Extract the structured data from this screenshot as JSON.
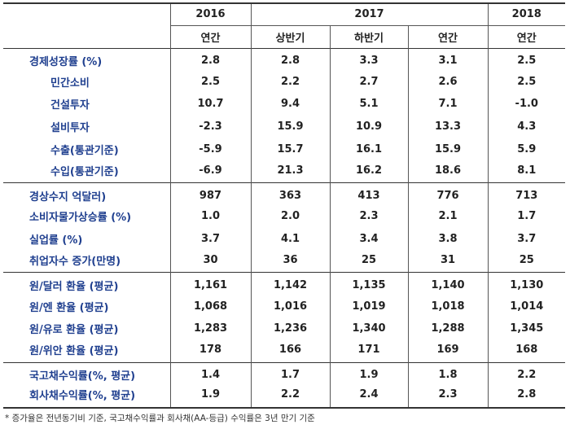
{
  "header": {
    "years": [
      "2016",
      "2017",
      "2018"
    ],
    "periods": [
      "연간",
      "상반기",
      "하반기",
      "연간",
      "연간"
    ]
  },
  "groups": [
    {
      "rows": [
        {
          "label": "경제성장률 (%)",
          "sub": false,
          "values": [
            "2.8",
            "2.8",
            "3.3",
            "3.1",
            "2.5"
          ]
        },
        {
          "label": "민간소비",
          "sub": true,
          "values": [
            "2.5",
            "2.2",
            "2.7",
            "2.6",
            "2.5"
          ]
        },
        {
          "label": "건설투자",
          "sub": true,
          "values": [
            "10.7",
            "9.4",
            "5.1",
            "7.1",
            "-1.0"
          ]
        },
        {
          "label": "설비투자",
          "sub": true,
          "values": [
            "-2.3",
            "15.9",
            "10.9",
            "13.3",
            "4.3"
          ]
        },
        {
          "label": "수출(통관기준)",
          "sub": true,
          "values": [
            "-5.9",
            "15.7",
            "16.1",
            "15.9",
            "5.9"
          ]
        },
        {
          "label": "수입(통관기준)",
          "sub": true,
          "values": [
            "-6.9",
            "21.3",
            "16.2",
            "18.6",
            "8.1"
          ]
        }
      ]
    },
    {
      "rows": [
        {
          "label": "경상수지 억달러)",
          "sub": false,
          "values": [
            "987",
            "363",
            "413",
            "776",
            "713"
          ]
        },
        {
          "label": "소비자물가상승률 (%)",
          "sub": false,
          "values": [
            "1.0",
            "2.0",
            "2.3",
            "2.1",
            "1.7"
          ]
        },
        {
          "label": "실업률 (%)",
          "sub": false,
          "values": [
            "3.7",
            "4.1",
            "3.4",
            "3.8",
            "3.7"
          ]
        },
        {
          "label": "취업자수 증가(만명)",
          "sub": false,
          "values": [
            "30",
            "36",
            "25",
            "31",
            "25"
          ]
        }
      ]
    },
    {
      "rows": [
        {
          "label": "원/달러 환율 (평균)",
          "sub": false,
          "values": [
            "1,161",
            "1,142",
            "1,135",
            "1,140",
            "1,130"
          ]
        },
        {
          "label": "원/엔 환율 (평균)",
          "sub": false,
          "values": [
            "1,068",
            "1,016",
            "1,019",
            "1,018",
            "1,014"
          ]
        },
        {
          "label": "원/유로 환율 (평균)",
          "sub": false,
          "values": [
            "1,283",
            "1,236",
            "1,340",
            "1,288",
            "1,345"
          ]
        },
        {
          "label": "원/위안 환율 (평균)",
          "sub": false,
          "values": [
            "178",
            "166",
            "171",
            "169",
            "168"
          ]
        }
      ]
    },
    {
      "rows": [
        {
          "label": "국고채수익률(%, 평균)",
          "sub": false,
          "values": [
            "1.4",
            "1.7",
            "1.9",
            "1.8",
            "2.2"
          ]
        },
        {
          "label": "회사채수익률(%, 평균)",
          "sub": false,
          "values": [
            "1.9",
            "2.2",
            "2.4",
            "2.3",
            "2.8"
          ]
        }
      ]
    }
  ],
  "footnote": "* 증가율은 전년동기비 기준, 국고채수익률과 회사채(AA-등급) 수익률은 3년 만기 기준"
}
